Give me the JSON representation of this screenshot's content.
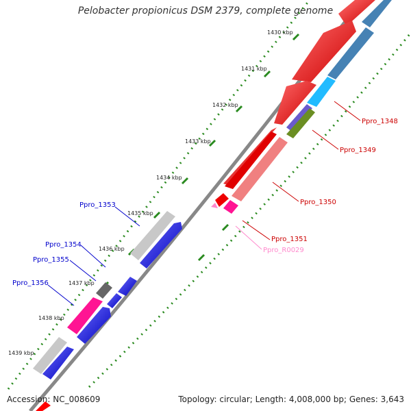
{
  "title": "Pelobacter propionicus DSM 2379, complete genome",
  "accession_text": "Accession: NC_008609",
  "topology_text": "Topology: circular; Length: 4,008,000 bp; Genes: 3,643",
  "colors": {
    "backbone": "#888888",
    "tick_dots": "#2a8a1f",
    "forward_gene": "#ff0000",
    "forward_light": "#f08080",
    "reverse_gene": "#0000ff",
    "steelblue": "#4682b4",
    "cyan": "#22bbff",
    "slate": "#6a5acd",
    "olive": "#6b8e23",
    "magenta": "#ff1493",
    "gray_light": "#c8c8c8",
    "gray_dark": "#666666",
    "label_red": "#cc0000",
    "label_blue": "#0000cc",
    "label_pink": "#ff88cc"
  },
  "kbp_labels": [
    "1430 kbp",
    "1431 kbp",
    "1432 kbp",
    "1433 kbp",
    "1434 kbp",
    "1435 kbp",
    "1436 kbp",
    "1437 kbp",
    "1438 kbp",
    "1439 kbp"
  ],
  "gene_labels": {
    "ppro_1348": "Ppro_1348",
    "ppro_1349": "Ppro_1349",
    "ppro_1350": "Ppro_1350",
    "ppro_1351": "Ppro_1351",
    "ppro_r0029": "Ppro_R0029",
    "ppro_1353": "Ppro_1353",
    "ppro_1354": "Ppro_1354",
    "ppro_1355": "Ppro_1355",
    "ppro_1356": "Ppro_1356"
  }
}
